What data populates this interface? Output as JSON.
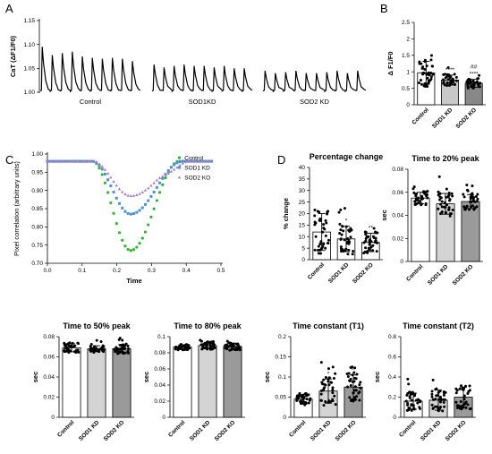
{
  "panel_labels": {
    "a": "A",
    "b": "B",
    "c": "C",
    "d": "D"
  },
  "chart_data": [
    {
      "id": "A",
      "type": "line",
      "ylabel": "CaT (ΔF1/F0)",
      "yticks": [
        1.0,
        1.05,
        1.1,
        1.15
      ],
      "ylim": [
        1.0,
        1.15
      ],
      "grid": false,
      "series": [
        {
          "group_label": "Control",
          "baseline": 1.0,
          "transient_peaks": [
            1.095,
            1.078,
            1.082,
            1.085,
            1.075,
            1.072,
            1.07,
            1.072,
            1.07,
            1.065
          ]
        },
        {
          "group_label": "SOD1KD",
          "baseline": 1.0,
          "transient_peaks": [
            1.058,
            1.052,
            1.055,
            1.058,
            1.055,
            1.055,
            1.052,
            1.055,
            1.05,
            1.05
          ]
        },
        {
          "group_label": "SOD2 KD",
          "baseline": 1.0,
          "transient_peaks": [
            1.045,
            1.04,
            1.042,
            1.045,
            1.04,
            1.04,
            1.042,
            1.045,
            1.04,
            1.045
          ]
        }
      ]
    },
    {
      "id": "B",
      "type": "bar",
      "ylabel": "Δ F1/F0",
      "yticks": [
        0.0,
        0.5,
        1.0,
        1.5,
        2.0,
        2.5
      ],
      "ylim": [
        0,
        2.5
      ],
      "categories": [
        "Control",
        "SOD1 KD",
        "SOD2 KO"
      ],
      "values": [
        0.97,
        0.75,
        0.65
      ],
      "errors": [
        0.35,
        0.15,
        0.12
      ],
      "bar_colors": [
        "#ffffff",
        "#c8c8c8",
        "#888888"
      ],
      "significance": [
        "",
        "****",
        "##\n****"
      ]
    },
    {
      "id": "C",
      "type": "scatter",
      "xlabel": "Time",
      "ylabel": "Pixel correlation (arbitrary units)",
      "xticks": [
        0.0,
        0.1,
        0.2,
        0.3,
        0.4,
        0.5
      ],
      "xlim": [
        0,
        0.5
      ],
      "yticks": [
        0.7,
        0.75,
        0.8,
        0.85,
        0.9,
        0.95,
        1.0
      ],
      "ylim": [
        0.7,
        1.0
      ],
      "legend_position": "top-right",
      "series": [
        {
          "name": "Control",
          "color": "#2db52d",
          "marker": "circle",
          "baseline": 0.98,
          "min": 0.735,
          "min_t": 0.24,
          "start": 0.13,
          "recover": 0.38
        },
        {
          "name": "SOD1 KD",
          "color": "#4a90d9",
          "marker": "square",
          "baseline": 0.98,
          "min": 0.835,
          "min_t": 0.24,
          "start": 0.13,
          "recover": 0.39
        },
        {
          "name": "SOD2 KO",
          "color": "#a879c9",
          "marker": "triangle",
          "baseline": 0.98,
          "min": 0.885,
          "min_t": 0.24,
          "start": 0.13,
          "recover": 0.4
        }
      ]
    },
    {
      "id": "D1",
      "type": "bar",
      "title": "Percentage change",
      "ylabel": "% change",
      "yticks": [
        0,
        5,
        10,
        15,
        20,
        25,
        30,
        35,
        40
      ],
      "ylim": [
        0,
        40
      ],
      "categories": [
        "Control",
        "SOD1 KD",
        "SOD2 KO"
      ],
      "values": [
        12.0,
        9.0,
        7.5
      ],
      "errors": [
        8.0,
        5.5,
        4.0
      ],
      "bar_colors": [
        "#ffffff",
        "#ffffff",
        "#ffffff"
      ],
      "significance": [
        "",
        "*",
        "**"
      ]
    },
    {
      "id": "D2",
      "type": "bar",
      "title": "Time to 20% peak",
      "ylabel": "sec",
      "yticks": [
        0.0,
        0.02,
        0.04,
        0.06,
        0.08
      ],
      "ylim": [
        0,
        0.08
      ],
      "categories": [
        "Control",
        "SOD1 KD",
        "SOD2 KO"
      ],
      "values": [
        0.055,
        0.05,
        0.052
      ],
      "errors": [
        0.005,
        0.009,
        0.006
      ],
      "bar_colors": [
        "#ffffff",
        "#d4d4d4",
        "#9a9a9a"
      ],
      "significance": [
        "",
        "",
        ""
      ]
    },
    {
      "id": "D3",
      "type": "bar",
      "title": "Time to 50% peak",
      "ylabel": "sec",
      "yticks": [
        0.0,
        0.02,
        0.04,
        0.06,
        0.08
      ],
      "ylim": [
        0,
        0.08
      ],
      "categories": [
        "Control",
        "SOD1 KD",
        "SOD2 KO"
      ],
      "values": [
        0.069,
        0.068,
        0.068
      ],
      "errors": [
        0.004,
        0.003,
        0.004
      ],
      "bar_colors": [
        "#ffffff",
        "#d4d4d4",
        "#9a9a9a"
      ],
      "significance": [
        "",
        "",
        ""
      ]
    },
    {
      "id": "D4",
      "type": "bar",
      "title": "Time to 80% peak",
      "ylabel": "sec",
      "yticks": [
        0.0,
        0.02,
        0.04,
        0.06,
        0.08,
        0.1
      ],
      "ylim": [
        0,
        0.1
      ],
      "categories": [
        "Control",
        "SOD1 KD",
        "SOD2 KO"
      ],
      "values": [
        0.087,
        0.089,
        0.088
      ],
      "errors": [
        0.003,
        0.004,
        0.004
      ],
      "bar_colors": [
        "#ffffff",
        "#d4d4d4",
        "#9a9a9a"
      ],
      "significance": [
        "",
        "",
        ""
      ]
    },
    {
      "id": "D5",
      "type": "bar",
      "title": "Time constant (T1)",
      "ylabel": "sec",
      "yticks": [
        0.0,
        0.05,
        0.1,
        0.15,
        0.2
      ],
      "ylim": [
        0,
        0.2
      ],
      "categories": [
        "Control",
        "SOD1 KD",
        "SOD2 KO"
      ],
      "values": [
        0.045,
        0.065,
        0.075
      ],
      "errors": [
        0.012,
        0.03,
        0.03
      ],
      "bar_colors": [
        "#ffffff",
        "#d4d4d4",
        "#9a9a9a"
      ],
      "significance": [
        "",
        "*",
        "**"
      ]
    },
    {
      "id": "D6",
      "type": "bar",
      "title": "Time constant (T2)",
      "ylabel": "sec",
      "yticks": [
        0.0,
        0.2,
        0.4,
        0.6,
        0.8
      ],
      "ylim": [
        0,
        0.8
      ],
      "categories": [
        "Control",
        "SOD1 KD",
        "SOD2 KO"
      ],
      "values": [
        0.16,
        0.17,
        0.2
      ],
      "errors": [
        0.08,
        0.1,
        0.1
      ],
      "bar_colors": [
        "#ffffff",
        "#d4d4d4",
        "#9a9a9a"
      ],
      "significance": [
        "",
        "",
        ""
      ]
    }
  ]
}
